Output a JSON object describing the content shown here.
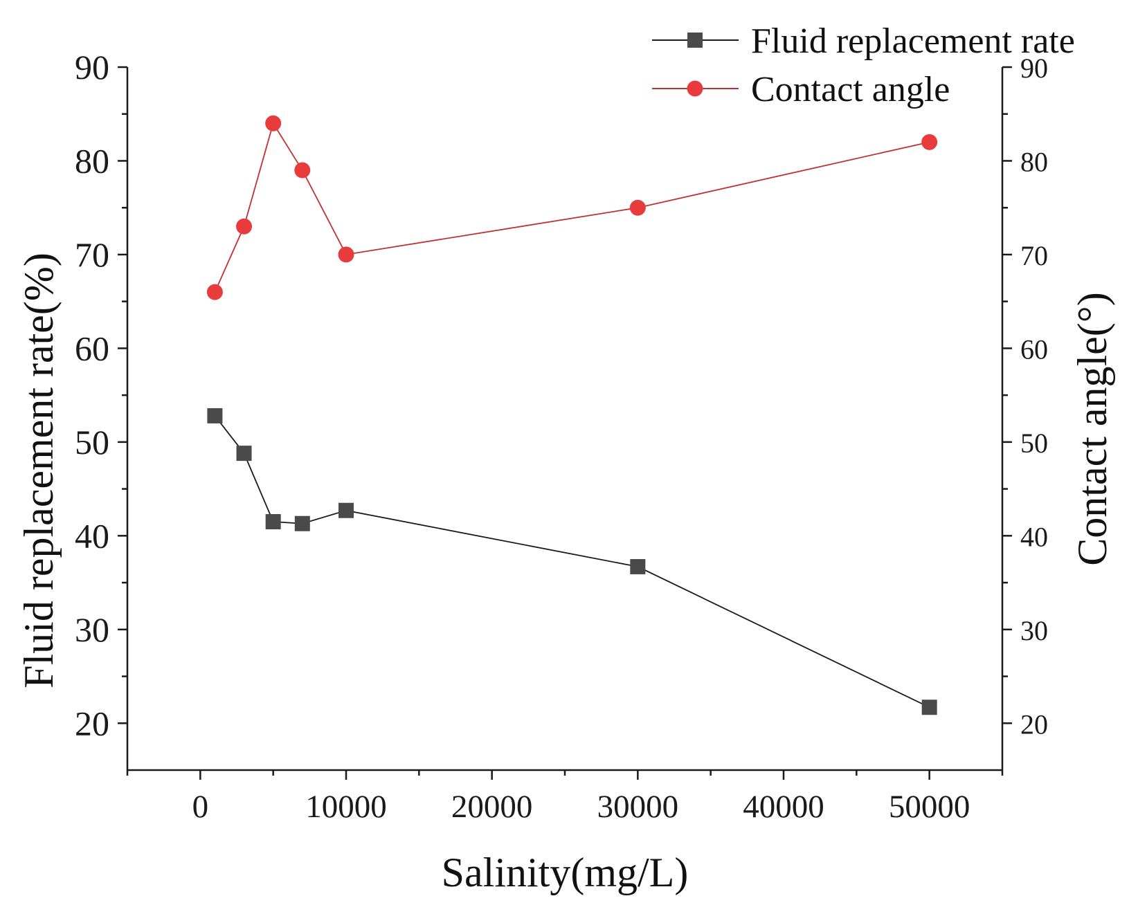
{
  "chart_data": {
    "type": "line",
    "dual_axis": true,
    "xlabel": "Salinity(mg/L)",
    "ylabel_left": "Fluid replacement rate(%)",
    "ylabel_right": "Contact angle(°)",
    "xlim": [
      -5000,
      55000
    ],
    "ylim_left": [
      15,
      90
    ],
    "ylim_right": [
      15,
      90
    ],
    "x_ticks": [
      0,
      10000,
      20000,
      30000,
      40000,
      50000
    ],
    "x_minor_ticks": [
      -5000,
      5000,
      15000,
      25000,
      35000,
      45000,
      55000
    ],
    "y_ticks": [
      20,
      30,
      40,
      50,
      60,
      70,
      80,
      90
    ],
    "y_minor_ticks": [
      25,
      35,
      45,
      55,
      65,
      75,
      85
    ],
    "x_tick_labels": [
      "0",
      "10000",
      "20000",
      "30000",
      "40000",
      "50000"
    ],
    "y_tick_labels_left": [
      "20",
      "30",
      "40",
      "50",
      "60",
      "70",
      "80",
      "90"
    ],
    "y_tick_labels_right": [
      "20",
      "30",
      "40",
      "50",
      "60",
      "70",
      "80",
      "90"
    ],
    "grid": false,
    "legend_position": "top-right",
    "series": [
      {
        "name": "Fluid replacement rate",
        "axis": "left",
        "marker": "square",
        "color": "#4a4a4a",
        "line_color": "#1a1a1a",
        "x": [
          1000,
          3000,
          5000,
          7000,
          10000,
          30000,
          50000
        ],
        "values": [
          52.8,
          48.8,
          41.5,
          41.3,
          42.7,
          36.7,
          21.7
        ]
      },
      {
        "name": "Contact angle",
        "axis": "right",
        "marker": "circle",
        "color": "#e83c3c",
        "line_color": "#c03030",
        "x": [
          1000,
          3000,
          5000,
          7000,
          10000,
          30000,
          50000
        ],
        "values": [
          66,
          73,
          84,
          79,
          70,
          75,
          82
        ]
      }
    ]
  }
}
